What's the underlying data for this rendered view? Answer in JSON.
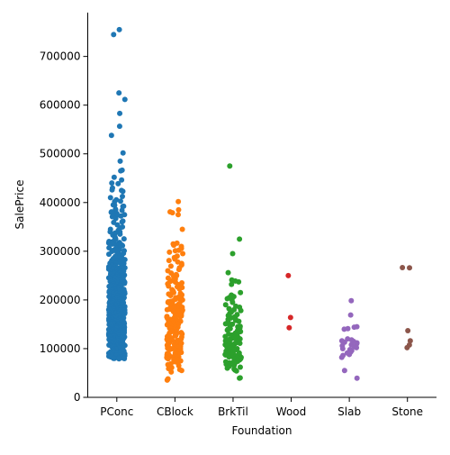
{
  "chart_data": {
    "type": "scatter",
    "subtype": "strip",
    "title": "",
    "xlabel": "Foundation",
    "ylabel": "SalePrice",
    "ylim": [
      0,
      790000
    ],
    "yticks": [
      0,
      100000,
      200000,
      300000,
      400000,
      500000,
      600000,
      700000
    ],
    "grid": false,
    "categories": [
      "PConc",
      "CBlock",
      "BrkTil",
      "Wood",
      "Slab",
      "Stone"
    ],
    "colors": {
      "PConc": "#1f77b4",
      "CBlock": "#ff7f0e",
      "BrkTil": "#2ca02c",
      "Wood": "#d62728",
      "Slab": "#9467bd",
      "Stone": "#8c564b"
    },
    "series": [
      {
        "category": "PConc",
        "values": [
          755000,
          745000,
          625000,
          611657,
          582933,
          556581,
          538000,
          501837,
          485000,
          466500,
          465000,
          451950,
          446261,
          440000,
          438780,
          430000,
          426000,
          424870,
          423000,
          412500,
          410000,
          405749,
          402861,
          402000,
          395192,
          394617,
          392500,
          392000,
          386250,
          385000,
          383970,
          381000,
          380000,
          378500,
          377500,
          377426,
          375000,
          372500,
          372402,
          370878,
          367294,
          361919,
          360000,
          359100,
          354000,
          350000,
          348000,
          345000,
          342643,
          340000,
          339750,
          337500,
          335000,
          333168,
          328900,
          328000,
          325624,
          325300,
          325000,
          320000,
          319900,
          318061,
          318000,
          317000,
          315750,
          315500,
          315000,
          314813,
          313000,
          312500,
          311872,
          311500,
          310000,
          309000,
          307000,
          306000,
          305900,
          305000,
          303477,
          302000,
          301500,
          301000,
          299800,
          297000,
          295493,
          295000,
          294000,
          293077,
          290000,
          289000,
          287090,
          286000,
          285000,
          284000,
          282922,
          281213,
          281000,
          280000,
          279500,
          278000,
          277500,
          277000,
          275500,
          275000,
          274970,
          274900,
          274725,
          274300,
          272000,
          271900,
          271000,
          270000,
          269790,
          269500,
          268000,
          267000,
          266500,
          266000,
          265979,
          265900,
          265000,
          264561,
          264132,
          263435,
          263000,
          262500,
          262280,
          262000,
          260400,
          260000,
          259500,
          259000,
          258000,
          257500,
          257000,
          256300,
          256000,
          255900,
          255500,
          255000,
          254900,
          254000,
          253293,
          253000,
          252678,
          252000,
          251000,
          250580,
          250000,
          249700,
          248900,
          248328,
          248000,
          247000,
          246578,
          245700,
          245500,
          245350,
          245000,
          244600,
          244400,
          244000,
          243000,
          242000,
          241500,
          241000,
          240000,
          239900,
          239799,
          239686,
          239500,
          239000,
          238000,
          237500,
          237000,
          236500,
          236000,
          235128,
          235000,
          234000,
          233230,
          233170,
          233000,
          232600,
          232000,
          231500,
          230500,
          230000,
          229456,
          229000,
          228950,
          228500,
          228000,
          227875,
          227680,
          227000,
          226700,
          226000,
          225000,
          224900,
          224500,
          224000,
          223500,
          223000,
          222500,
          222000,
          221500,
          221000,
          220000,
          219500,
          219210,
          219000,
          218000,
          217500,
          217000,
          216837,
          216500,
          216000,
          215200,
          215000,
          214900,
          214500,
          214000,
          213500,
          213490,
          213250,
          213000,
          212900,
          212000,
          211000,
          210000,
          209500,
          208900,
          208500,
          208300,
          208000,
          207500,
          207000,
          206900,
          206300,
          206000,
          205950,
          205000,
          204900,
          204750,
          204000,
          203000,
          202900,
          202665,
          202500,
          202000,
          201800,
          201000,
          200624,
          200500,
          200141,
          200000,
          199900,
          199500,
          199000,
          198900,
          198500,
          197900,
          197500,
          197000,
          196500,
          196000,
          195400,
          195000,
          194700,
          194500,
          194201,
          194000,
          193879,
          193500,
          193000,
          192500,
          192140,
          192000,
          191000,
          190000,
          189950,
          189000,
          188700,
          188500,
          188000,
          187750,
          187500,
          187100,
          187000,
          186700,
          186500,
          186000,
          185900,
          185850,
          185750,
          185500,
          185000,
          184900,
          184750,
          184100,
          184000,
          183900,
          183500,
          183200,
          183000,
          182900,
          182500,
          182000,
          181900,
          181500,
          181134,
          181000,
          180500,
          180000,
          179900,
          179665,
          179600,
          179540,
          179400,
          179200,
          179000,
          178900,
          178740,
          178400,
          178000,
          177500,
          177000,
          176485,
          176432,
          176000,
          175900,
          175500,
          175000,
          174900,
          174500,
          174000,
          173900,
          173733,
          173500,
          173000,
          172785,
          172500,
          172400,
          172000,
          171900,
          171750,
          171500,
          171000,
          170000,
          169990,
          169500,
          169000,
          168500,
          168000,
          167900,
          167500,
          167240,
          167000,
          166000,
          165600,
          165500,
          165400,
          165150,
          165000,
          164990,
          164900,
          164700,
          164500,
          164000,
          163990,
          163900,
          163500,
          163000,
          162900,
          162500,
          162000,
          161750,
          161500,
          161000,
          160200,
          160000,
          159895,
          159500,
          159434,
          159000,
          158900,
          158500,
          158000,
          157900,
          157500,
          157000,
          156500,
          156000,
          155900,
          155835,
          155000,
          154900,
          154500,
          154300,
          154000,
          153900,
          153575,
          153500,
          153337,
          153000,
          152000,
          151500,
          151400,
          151000,
          150900,
          150750,
          150500,
          150000,
          149900,
          149700,
          149500,
          149350,
          149300,
          149000,
          148500,
          148325,
          148000,
          147500,
          147400,
          147000,
          146800,
          146500,
          146000,
          145900,
          145500,
          145250,
          145000,
          144900,
          144500,
          144152,
          144000,
          143750,
          143500,
          143250,
          143000,
          142953,
          142600,
          142500,
          142125,
          142000,
          141500,
          141000,
          140200,
          140000,
          139900,
          139600,
          139500,
          139400,
          139000,
          138887,
          138800,
          138500,
          138000,
          137900,
          137500,
          137450,
          137000,
          136905,
          136500,
          136000,
          135960,
          135900,
          135750,
          135500,
          135000,
          134900,
          134800,
          134500,
          134450,
          134432,
          134000,
          133900,
          133700,
          133500,
          133000,
          132500,
          132250,
          132000,
          131500,
          131400,
          131000,
          130500,
          130250,
          130000,
          129900,
          129500,
          129000,
          128950,
          128900,
          128500,
          128200,
          128000,
          127500,
          127000,
          126500,
          126175,
          126000,
          125500,
          125000,
          124900,
          124500,
          124000,
          123900,
          123600,
          123500,
          123000,
          122900,
          122500,
          122000,
          121600,
          121500,
          121000,
          120500,
          120000,
          119900,
          119750,
          119500,
          119200,
          119000,
          118964,
          118500,
          118400,
          118000,
          117500,
          117000,
          116900,
          116500,
          116050,
          116000,
          115000,
          114504,
          114500,
          114000,
          113000,
          112500,
          112000,
          111250,
          110500,
          110000,
          109900,
          109500,
          109008,
          109000,
          108500,
          108000,
          107900,
          107500,
          107400,
          107000,
          106500,
          106250,
          106000,
          105900,
          105500,
          105000,
          104900,
          104000,
          103600,
          103200,
          103000,
          102776,
          102000,
          101800,
          100000,
          99900,
          99500,
          98000,
          96500,
          95000,
          94750,
          94500,
          93500,
          92900,
          92000,
          91500,
          91000,
          90350,
          90000,
          89500,
          89471,
          88750,
          88000,
          87500,
          87000,
          86000,
          85500,
          85400,
          85000,
          84900,
          84500,
          83500,
          83000,
          82500,
          82000,
          81000,
          80500,
          80000,
          79900,
          79500,
          79000
        ]
      },
      {
        "category": "CBlock",
        "values": [
          402000,
          385000,
          381000,
          379000,
          375000,
          345000,
          316600,
          315000,
          312500,
          310000,
          306000,
          302000,
          301000,
          298000,
          295000,
          290000,
          287000,
          284000,
          281000,
          278000,
          275000,
          272000,
          269500,
          266000,
          262500,
          260000,
          255000,
          252000,
          250000,
          248000,
          245000,
          243000,
          241500,
          240000,
          238000,
          236500,
          235000,
          233000,
          231500,
          230000,
          228500,
          227000,
          225500,
          224000,
          222500,
          221000,
          219500,
          218000,
          216500,
          215000,
          213500,
          212000,
          210500,
          209000,
          207500,
          206000,
          204500,
          203000,
          201500,
          200000,
          199000,
          198000,
          197000,
          196000,
          195000,
          194000,
          193000,
          192000,
          191000,
          190000,
          189000,
          188000,
          187000,
          186000,
          185000,
          184000,
          183000,
          182000,
          181000,
          180000,
          179000,
          178000,
          177000,
          176000,
          175000,
          174000,
          173000,
          172000,
          171000,
          170000,
          169000,
          168000,
          167000,
          166000,
          165000,
          164000,
          163000,
          162000,
          161000,
          160000,
          159000,
          158000,
          157000,
          156000,
          155000,
          154000,
          153000,
          152000,
          151000,
          150000,
          149000,
          148000,
          147000,
          146000,
          145000,
          144000,
          143000,
          142000,
          141000,
          140000,
          139000,
          138000,
          137000,
          136000,
          135000,
          134000,
          133000,
          132000,
          131000,
          130000,
          129000,
          128000,
          127000,
          126000,
          125000,
          124000,
          123000,
          122000,
          121000,
          120000,
          119000,
          118000,
          117000,
          116000,
          115000,
          114000,
          113000,
          112000,
          111000,
          110000,
          109000,
          108000,
          107000,
          106000,
          105000,
          104000,
          103000,
          102000,
          101000,
          100000,
          99000,
          98000,
          97000,
          96000,
          95000,
          94000,
          93000,
          92000,
          91000,
          90000,
          89000,
          88000,
          87000,
          86000,
          85000,
          84000,
          83000,
          82000,
          81000,
          80000,
          79000,
          78000,
          77000,
          76000,
          75000,
          73000,
          71000,
          69000,
          67000,
          65000,
          63000,
          61000,
          59000,
          57000,
          55000,
          52000,
          37900,
          35311
        ],
        "density_reference": "dense band 90000-200000"
      },
      {
        "category": "BrkTil",
        "values": [
          475000,
          325000,
          295000,
          256000,
          241000,
          239000,
          237000,
          232000,
          215000,
          210000,
          207000,
          205000,
          202500,
          200000,
          195000,
          190000,
          187000,
          185000,
          182000,
          180000,
          178000,
          175000,
          172000,
          170000,
          168000,
          165000,
          163000,
          161000,
          160000,
          158000,
          156000,
          155000,
          153000,
          151000,
          150000,
          148000,
          146000,
          145000,
          143000,
          141000,
          140000,
          138000,
          137000,
          135000,
          134000,
          132000,
          130000,
          129000,
          128000,
          127000,
          126000,
          125000,
          124000,
          123000,
          122000,
          121000,
          120000,
          119000,
          118000,
          117000,
          116000,
          115000,
          114000,
          113000,
          112000,
          111000,
          110000,
          109000,
          108000,
          107000,
          106000,
          105000,
          104000,
          103000,
          102000,
          101000,
          100000,
          99000,
          98000,
          97000,
          96000,
          95000,
          94000,
          93000,
          92000,
          91000,
          90000,
          89000,
          88000,
          87000,
          86000,
          85000,
          84000,
          83000,
          82000,
          81000,
          80000,
          79000,
          78000,
          77000,
          76000,
          75000,
          74000,
          73000,
          72000,
          71000,
          70000,
          68000,
          66000,
          64000,
          62000,
          60000,
          58000,
          56000,
          54000,
          40000,
          39300
        ]
      },
      {
        "category": "Wood",
        "values": [
          250000,
          164000,
          143000
        ]
      },
      {
        "category": "Slab",
        "values": [
          198500,
          169000,
          145000,
          144000,
          141000,
          140000,
          120000,
          118000,
          116000,
          115000,
          113000,
          112000,
          110000,
          108000,
          106000,
          104000,
          102000,
          100000,
          98000,
          96000,
          93000,
          91000,
          90000,
          88000,
          86000,
          82000,
          55000,
          39300
        ]
      },
      {
        "category": "Stone",
        "values": [
          266500,
          266000,
          137000,
          116000,
          107500,
          102000
        ]
      }
    ]
  }
}
